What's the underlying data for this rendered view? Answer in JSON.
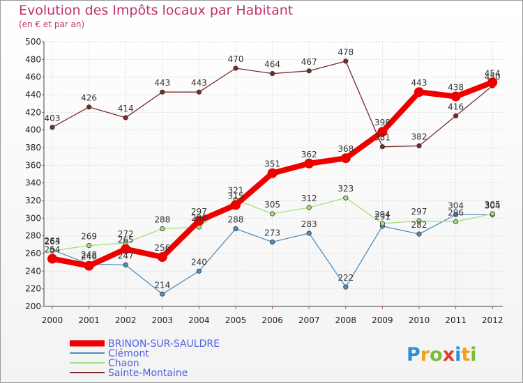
{
  "title": "Evolution des Impôts locaux par Habitant",
  "subtitle": "(en € et par an)",
  "logo": [
    "P",
    "r",
    "o",
    "x",
    "i",
    "t",
    "i"
  ],
  "logo_colors": [
    "#2d8fd5",
    "#f0a21c",
    "#7dba3a",
    "#e03b2e",
    "#2d8fd5",
    "#f0a21c",
    "#7dba3a"
  ],
  "chart_data": {
    "type": "line",
    "title": "Evolution des Impôts locaux par Habitant",
    "subtitle": "(en € et par an)",
    "xlabel": "",
    "ylabel": "",
    "ylim": [
      200,
      500
    ],
    "yticks": [
      200,
      220,
      240,
      260,
      280,
      300,
      320,
      340,
      360,
      380,
      400,
      420,
      440,
      460,
      480,
      500
    ],
    "x": [
      "2000",
      "2001",
      "2002",
      "2003",
      "2004",
      "2005",
      "2006",
      "2007",
      "2008",
      "2009",
      "2010",
      "2011",
      "2012"
    ],
    "legend_position": "bottom-left",
    "grid": true,
    "series": [
      {
        "name": "Sainte-Montaine",
        "color": "#7a2a2a",
        "values": [
          403,
          426,
          414,
          443,
          443,
          470,
          464,
          467,
          478,
          381,
          382,
          416,
          450
        ]
      },
      {
        "name": "Clémont",
        "color": "#4f8fbf",
        "values": [
          264,
          248,
          247,
          214,
          240,
          288,
          273,
          283,
          222,
          291,
          282,
          304,
          304
        ]
      },
      {
        "name": "Chaon",
        "color": "#a6dd80",
        "values": [
          263,
          269,
          272,
          288,
          290,
          321,
          305,
          312,
          323,
          294,
          297,
          296,
          305
        ]
      },
      {
        "name": "BRINON-SUR-SAULDRE",
        "color": "#ee0000",
        "values": [
          254,
          246,
          265,
          256,
          297,
          315,
          351,
          362,
          368,
          398,
          443,
          438,
          454
        ]
      }
    ]
  }
}
